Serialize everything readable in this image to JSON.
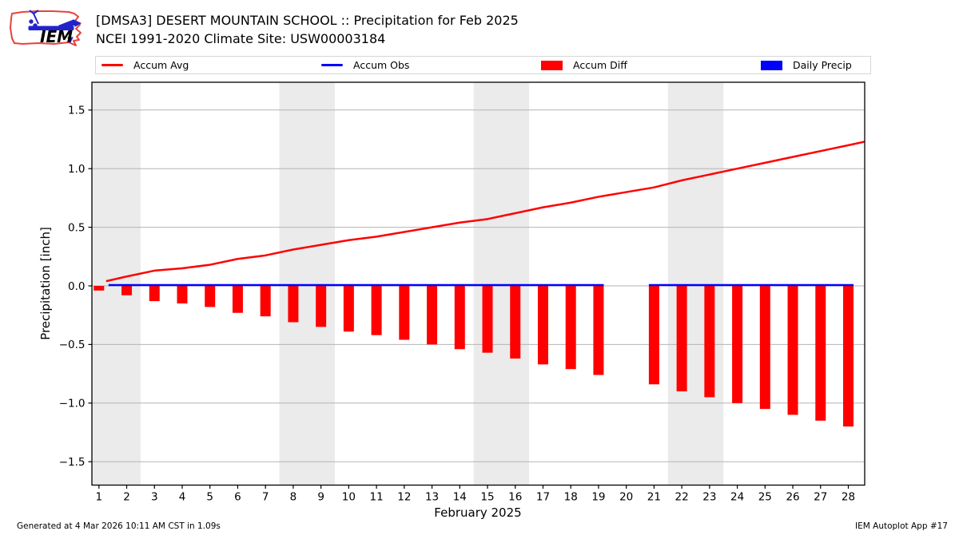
{
  "header": {
    "title_line1": "[DMSA3] DESERT MOUNTAIN SCHOOL :: Precipitation for Feb 2025",
    "title_line2": "NCEI 1991-2020 Climate Site: USW00003184",
    "logo_text": "IEM"
  },
  "legend": {
    "items": [
      {
        "label": "Accum Avg",
        "swatch": "line",
        "color": "#ff0000"
      },
      {
        "label": "Accum Obs",
        "swatch": "line",
        "color": "#0000ff"
      },
      {
        "label": "Accum Diff",
        "swatch": "patch",
        "color": "#ff0000"
      },
      {
        "label": "Daily Precip",
        "swatch": "patch",
        "color": "#0000ff"
      }
    ]
  },
  "footer": {
    "left": "Generated at 4 Mar 2026 10:11 AM CST in 1.09s",
    "right": "IEM Autoplot App #17"
  },
  "chart_data": {
    "type": "bar",
    "title": "[DMSA3] DESERT MOUNTAIN SCHOOL :: Precipitation for Feb 2025",
    "subtitle": "NCEI 1991-2020 Climate Site: USW00003184",
    "xlabel": "February 2025",
    "ylabel": "Precipitation [inch]",
    "x": [
      1,
      2,
      3,
      4,
      5,
      6,
      7,
      8,
      9,
      10,
      11,
      12,
      13,
      14,
      15,
      16,
      17,
      18,
      19,
      20,
      21,
      22,
      23,
      24,
      25,
      26,
      27,
      28
    ],
    "xlim": [
      0.74,
      28.6
    ],
    "ylim": [
      -1.7,
      1.74
    ],
    "yticks": [
      -1.5,
      -1.0,
      -0.5,
      0.0,
      0.5,
      1.0,
      1.5
    ],
    "ytick_labels": [
      "−1.5",
      "−1.0",
      "−0.5",
      "0.0",
      "0.5",
      "1.0",
      "1.5"
    ],
    "grid": "horizontal",
    "legend_position": "top",
    "weekend_shading_days": [
      [
        1,
        2
      ],
      [
        8,
        9
      ],
      [
        15,
        16
      ],
      [
        22,
        23
      ]
    ],
    "band_color": "#ebebeb",
    "series": [
      {
        "name": "Accum Avg",
        "type": "line",
        "color": "#ff0000",
        "values": [
          0.04,
          0.08,
          0.13,
          0.15,
          0.18,
          0.23,
          0.26,
          0.31,
          0.35,
          0.39,
          0.42,
          0.46,
          0.5,
          0.54,
          0.57,
          0.62,
          0.67,
          0.71,
          0.76,
          0.8,
          0.84,
          0.9,
          0.95,
          1.0,
          1.05,
          1.1,
          1.15,
          1.2
        ],
        "end_extension_value": 1.23
      },
      {
        "name": "Accum Obs",
        "type": "line",
        "color": "#0000ff",
        "values": [
          0,
          0,
          0,
          0,
          0,
          0,
          0,
          0,
          0,
          0,
          0,
          0,
          0,
          0,
          0,
          0,
          0,
          0,
          0,
          null,
          0,
          0,
          0,
          0,
          0,
          0,
          0,
          0
        ]
      },
      {
        "name": "Accum Diff",
        "type": "bar",
        "color": "#ff0000",
        "values": [
          -0.04,
          -0.08,
          -0.13,
          -0.15,
          -0.18,
          -0.23,
          -0.26,
          -0.31,
          -0.35,
          -0.39,
          -0.42,
          -0.46,
          -0.5,
          -0.54,
          -0.57,
          -0.62,
          -0.67,
          -0.71,
          -0.76,
          null,
          -0.84,
          -0.9,
          -0.95,
          -1.0,
          -1.05,
          -1.1,
          -1.15,
          -1.2
        ]
      },
      {
        "name": "Daily Precip",
        "type": "bar",
        "color": "#0000ff",
        "values": [
          0,
          0,
          0,
          0,
          0,
          0,
          0,
          0,
          0,
          0,
          0,
          0,
          0,
          0,
          0,
          0,
          0,
          0,
          0,
          null,
          0,
          0,
          0,
          0,
          0,
          0,
          0,
          0
        ]
      }
    ]
  }
}
